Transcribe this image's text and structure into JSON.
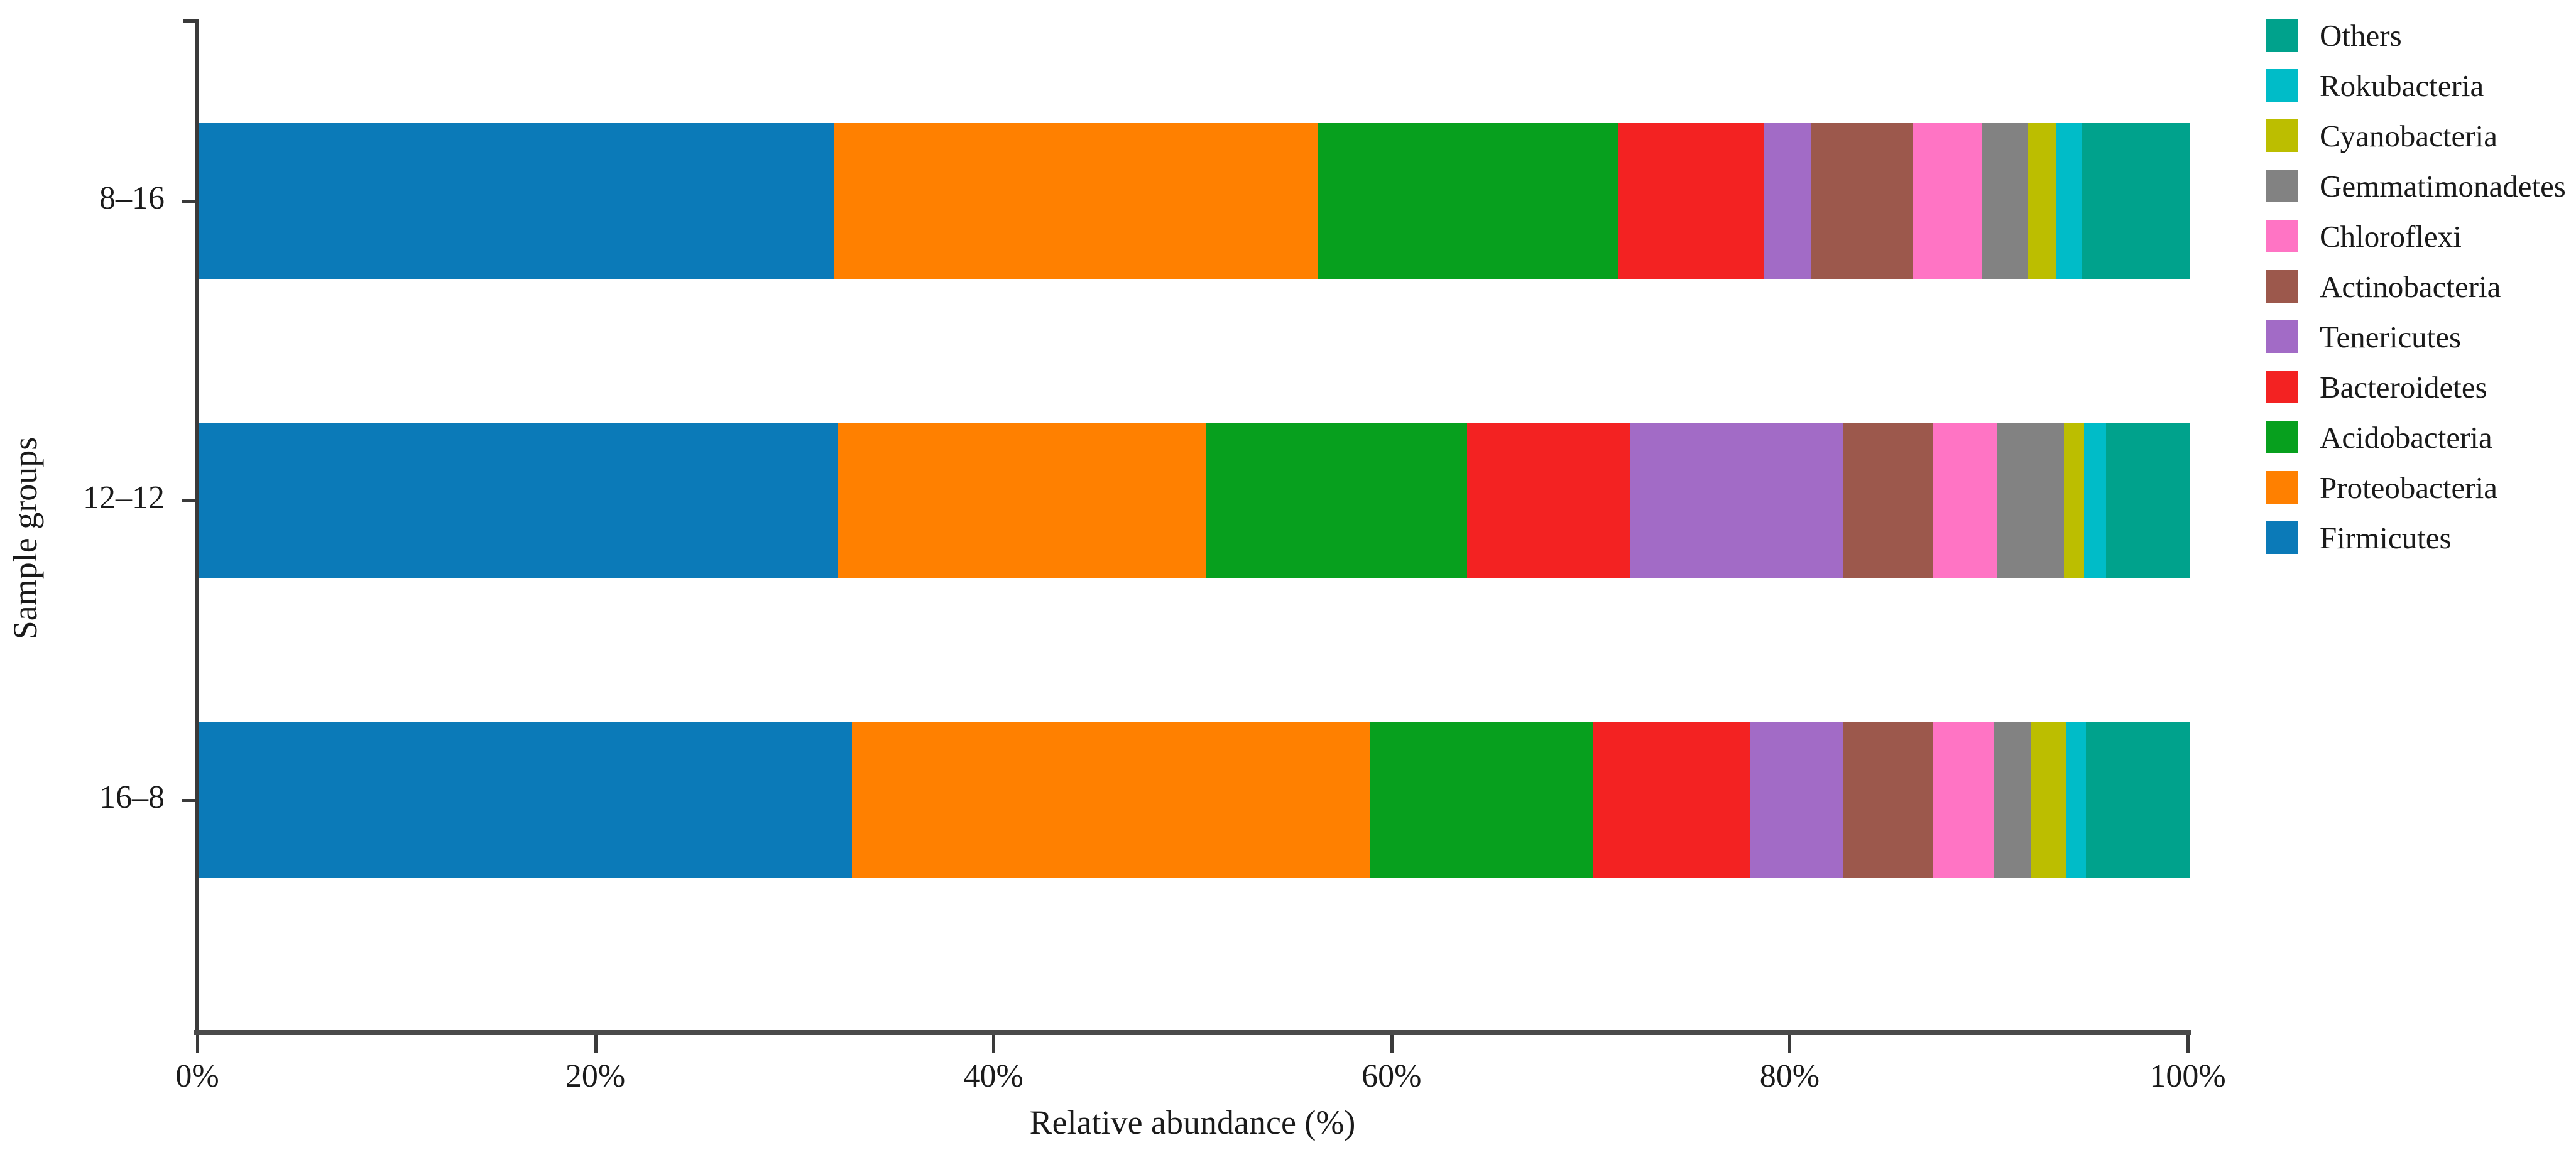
{
  "chart_data": {
    "type": "bar",
    "orientation": "horizontal",
    "stacked": true,
    "title": "",
    "xlabel": "Relative abundance (%)",
    "ylabel": "Sample groups",
    "xlim": [
      0,
      100
    ],
    "grid": false,
    "x_tick_values": [
      0,
      20,
      40,
      60,
      80,
      100
    ],
    "x_tick_labels": [
      "0%",
      "20%",
      "40%",
      "60%",
      "80%",
      "100%"
    ],
    "categories": [
      "8–16",
      "12–12",
      "16–8"
    ],
    "legend_position": "top-right",
    "legend_order": "reverse-of-stack (top entry = Others)",
    "series": [
      {
        "name": "Firmicutes",
        "color": "#0b7ab8",
        "values": [
          31.9,
          32.1,
          32.8
        ]
      },
      {
        "name": "Proteobacteria",
        "color": "#ff8000",
        "values": [
          24.3,
          18.5,
          26.0
        ]
      },
      {
        "name": "Acidobacteria",
        "color": "#07a01e",
        "values": [
          15.1,
          13.1,
          11.2
        ]
      },
      {
        "name": "Bacteroidetes",
        "color": "#f32222",
        "values": [
          7.3,
          8.2,
          7.9
        ]
      },
      {
        "name": "Tenericutes",
        "color": "#a26bc6",
        "values": [
          2.4,
          10.7,
          4.7
        ]
      },
      {
        "name": "Actinobacteria",
        "color": "#9c584c",
        "values": [
          5.1,
          4.5,
          4.5
        ]
      },
      {
        "name": "Chloroflexi",
        "color": "#ff74c4",
        "values": [
          3.5,
          3.2,
          3.1
        ]
      },
      {
        "name": "Gemmatimonadetes",
        "color": "#828282",
        "values": [
          2.3,
          3.4,
          1.8
        ]
      },
      {
        "name": "Cyanobacteria",
        "color": "#bcbe00",
        "values": [
          1.4,
          1.0,
          1.8
        ]
      },
      {
        "name": "Rokubacteria",
        "color": "#00bcc8",
        "values": [
          1.3,
          1.1,
          1.0
        ]
      },
      {
        "name": "Others",
        "color": "#00a28c",
        "values": [
          5.4,
          4.2,
          5.2
        ]
      }
    ]
  }
}
